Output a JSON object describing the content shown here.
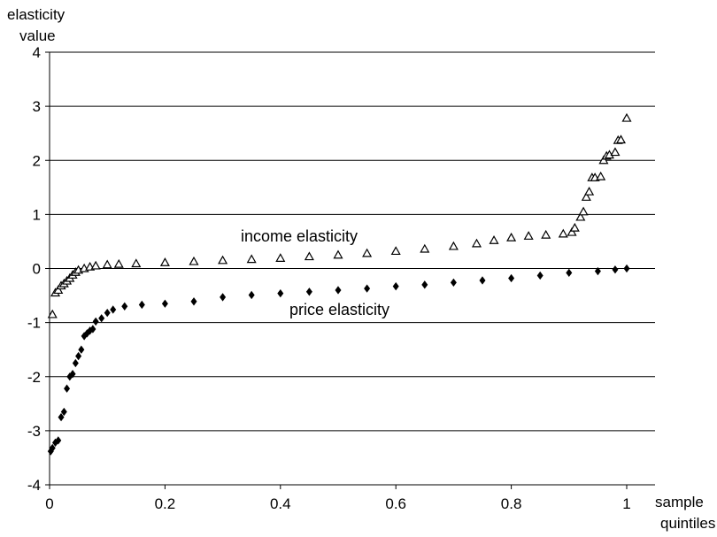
{
  "chart_data": {
    "type": "scatter",
    "title": "",
    "xlabel": "sample quintiles",
    "ylabel": "elasticity value",
    "xlim": [
      0,
      1
    ],
    "ylim": [
      -4,
      4
    ],
    "x_ticks": [
      "0",
      "0.2",
      "0.4",
      "0.6",
      "0.8",
      "1"
    ],
    "y_ticks": [
      "-4",
      "-3",
      "-2",
      "-1",
      "0",
      "1",
      "2",
      "3",
      "4"
    ],
    "grid": "horizontal",
    "colors": {
      "axis": "#000000",
      "grid": "#000000",
      "marker": "#000000",
      "background": "#ffffff"
    },
    "annotations": [
      {
        "text": "income elasticity",
        "series": "income elasticity"
      },
      {
        "text": "price elasticity",
        "series": "price elasticity"
      }
    ],
    "series": [
      {
        "name": "income elasticity",
        "marker": "open-triangle",
        "points": [
          [
            0.005,
            -0.85
          ],
          [
            0.01,
            -0.45
          ],
          [
            0.015,
            -0.4
          ],
          [
            0.02,
            -0.32
          ],
          [
            0.025,
            -0.28
          ],
          [
            0.03,
            -0.23
          ],
          [
            0.035,
            -0.18
          ],
          [
            0.04,
            -0.12
          ],
          [
            0.045,
            -0.07
          ],
          [
            0.05,
            -0.03
          ],
          [
            0.06,
            0.0
          ],
          [
            0.07,
            0.03
          ],
          [
            0.08,
            0.05
          ],
          [
            0.1,
            0.07
          ],
          [
            0.12,
            0.08
          ],
          [
            0.15,
            0.09
          ],
          [
            0.2,
            0.11
          ],
          [
            0.25,
            0.13
          ],
          [
            0.3,
            0.15
          ],
          [
            0.35,
            0.17
          ],
          [
            0.4,
            0.19
          ],
          [
            0.45,
            0.22
          ],
          [
            0.5,
            0.25
          ],
          [
            0.55,
            0.28
          ],
          [
            0.6,
            0.32
          ],
          [
            0.65,
            0.36
          ],
          [
            0.7,
            0.41
          ],
          [
            0.74,
            0.46
          ],
          [
            0.77,
            0.52
          ],
          [
            0.8,
            0.57
          ],
          [
            0.83,
            0.6
          ],
          [
            0.86,
            0.62
          ],
          [
            0.89,
            0.64
          ],
          [
            0.905,
            0.67
          ],
          [
            0.91,
            0.75
          ],
          [
            0.92,
            0.95
          ],
          [
            0.925,
            1.05
          ],
          [
            0.93,
            1.32
          ],
          [
            0.935,
            1.42
          ],
          [
            0.94,
            1.68
          ],
          [
            0.945,
            1.68
          ],
          [
            0.955,
            1.7
          ],
          [
            0.96,
            2.0
          ],
          [
            0.965,
            2.08
          ],
          [
            0.97,
            2.1
          ],
          [
            0.98,
            2.15
          ],
          [
            0.985,
            2.37
          ],
          [
            0.99,
            2.38
          ],
          [
            1.0,
            2.78
          ]
        ]
      },
      {
        "name": "price elasticity",
        "marker": "filled-diamond",
        "points": [
          [
            0.002,
            -3.38
          ],
          [
            0.005,
            -3.32
          ],
          [
            0.01,
            -3.22
          ],
          [
            0.015,
            -3.18
          ],
          [
            0.02,
            -2.75
          ],
          [
            0.025,
            -2.65
          ],
          [
            0.03,
            -2.22
          ],
          [
            0.035,
            -2.0
          ],
          [
            0.04,
            -1.95
          ],
          [
            0.045,
            -1.75
          ],
          [
            0.05,
            -1.62
          ],
          [
            0.055,
            -1.5
          ],
          [
            0.06,
            -1.25
          ],
          [
            0.065,
            -1.2
          ],
          [
            0.07,
            -1.15
          ],
          [
            0.075,
            -1.12
          ],
          [
            0.08,
            -0.98
          ],
          [
            0.09,
            -0.92
          ],
          [
            0.1,
            -0.82
          ],
          [
            0.11,
            -0.76
          ],
          [
            0.13,
            -0.7
          ],
          [
            0.16,
            -0.67
          ],
          [
            0.2,
            -0.65
          ],
          [
            0.25,
            -0.61
          ],
          [
            0.3,
            -0.53
          ],
          [
            0.35,
            -0.49
          ],
          [
            0.4,
            -0.46
          ],
          [
            0.45,
            -0.43
          ],
          [
            0.5,
            -0.4
          ],
          [
            0.55,
            -0.37
          ],
          [
            0.6,
            -0.33
          ],
          [
            0.65,
            -0.3
          ],
          [
            0.7,
            -0.26
          ],
          [
            0.75,
            -0.22
          ],
          [
            0.8,
            -0.18
          ],
          [
            0.85,
            -0.13
          ],
          [
            0.9,
            -0.08
          ],
          [
            0.95,
            -0.05
          ],
          [
            0.98,
            -0.02
          ],
          [
            1.0,
            0.0
          ]
        ]
      }
    ]
  }
}
